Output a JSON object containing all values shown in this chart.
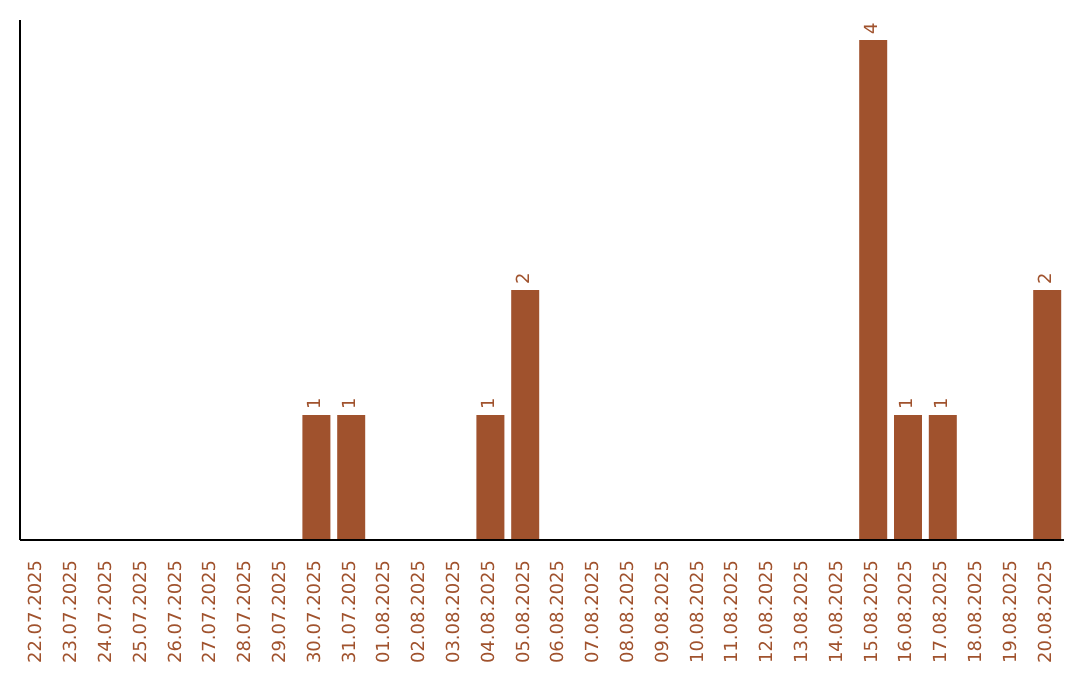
{
  "chart_data": {
    "type": "bar",
    "categories": [
      "22.07.2025",
      "23.07.2025",
      "24.07.2025",
      "25.07.2025",
      "26.07.2025",
      "27.07.2025",
      "28.07.2025",
      "29.07.2025",
      "30.07.2025",
      "31.07.2025",
      "01.08.2025",
      "02.08.2025",
      "03.08.2025",
      "04.08.2025",
      "05.08.2025",
      "06.08.2025",
      "07.08.2025",
      "08.08.2025",
      "09.08.2025",
      "10.08.2025",
      "11.08.2025",
      "12.08.2025",
      "13.08.2025",
      "14.08.2025",
      "15.08.2025",
      "16.08.2025",
      "17.08.2025",
      "18.08.2025",
      "19.08.2025",
      "20.08.2025"
    ],
    "values": [
      0,
      0,
      0,
      0,
      0,
      0,
      0,
      0,
      1,
      1,
      0,
      0,
      0,
      1,
      2,
      0,
      0,
      0,
      0,
      0,
      0,
      0,
      0,
      0,
      4,
      1,
      1,
      0,
      0,
      2
    ],
    "value_labels": [
      null,
      null,
      null,
      null,
      null,
      null,
      null,
      null,
      "1",
      "1",
      null,
      null,
      null,
      "1",
      "2",
      null,
      null,
      null,
      null,
      null,
      null,
      null,
      null,
      null,
      "4",
      "1",
      "1",
      null,
      null,
      "2"
    ],
    "color": "#a0522d",
    "tick_labels": "x",
    "grid": false,
    "legend": false
  }
}
